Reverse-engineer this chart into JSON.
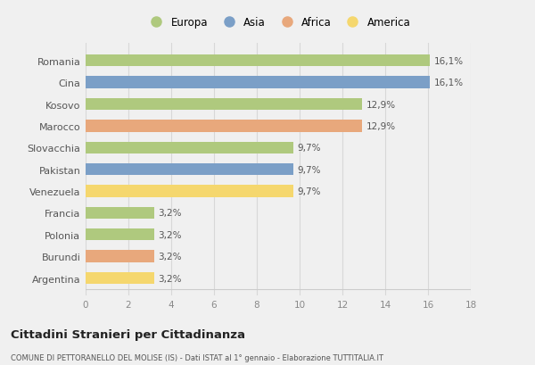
{
  "categories": [
    "Romania",
    "Cina",
    "Kosovo",
    "Marocco",
    "Slovacchia",
    "Pakistan",
    "Venezuela",
    "Francia",
    "Polonia",
    "Burundi",
    "Argentina"
  ],
  "values": [
    16.1,
    16.1,
    12.9,
    12.9,
    9.7,
    9.7,
    9.7,
    3.2,
    3.2,
    3.2,
    3.2
  ],
  "labels": [
    "16,1%",
    "16,1%",
    "12,9%",
    "12,9%",
    "9,7%",
    "9,7%",
    "9,7%",
    "3,2%",
    "3,2%",
    "3,2%",
    "3,2%"
  ],
  "colors": [
    "#afc97e",
    "#7b9fc7",
    "#afc97e",
    "#e8a87c",
    "#afc97e",
    "#7b9fc7",
    "#f5d76e",
    "#afc97e",
    "#afc97e",
    "#e8a87c",
    "#f5d76e"
  ],
  "legend_labels": [
    "Europa",
    "Asia",
    "Africa",
    "America"
  ],
  "legend_colors": [
    "#afc97e",
    "#7b9fc7",
    "#e8a87c",
    "#f5d76e"
  ],
  "xlim": [
    0,
    18
  ],
  "xticks": [
    0,
    2,
    4,
    6,
    8,
    10,
    12,
    14,
    16,
    18
  ],
  "title": "Cittadini Stranieri per Cittadinanza",
  "subtitle": "COMUNE DI PETTORANELLO DEL MOLISE (IS) - Dati ISTAT al 1° gennaio - Elaborazione TUTTITALIA.IT",
  "background_color": "#f0f0f0",
  "bar_bg_color": "#f0f0f0",
  "grid_color": "#d8d8d8"
}
